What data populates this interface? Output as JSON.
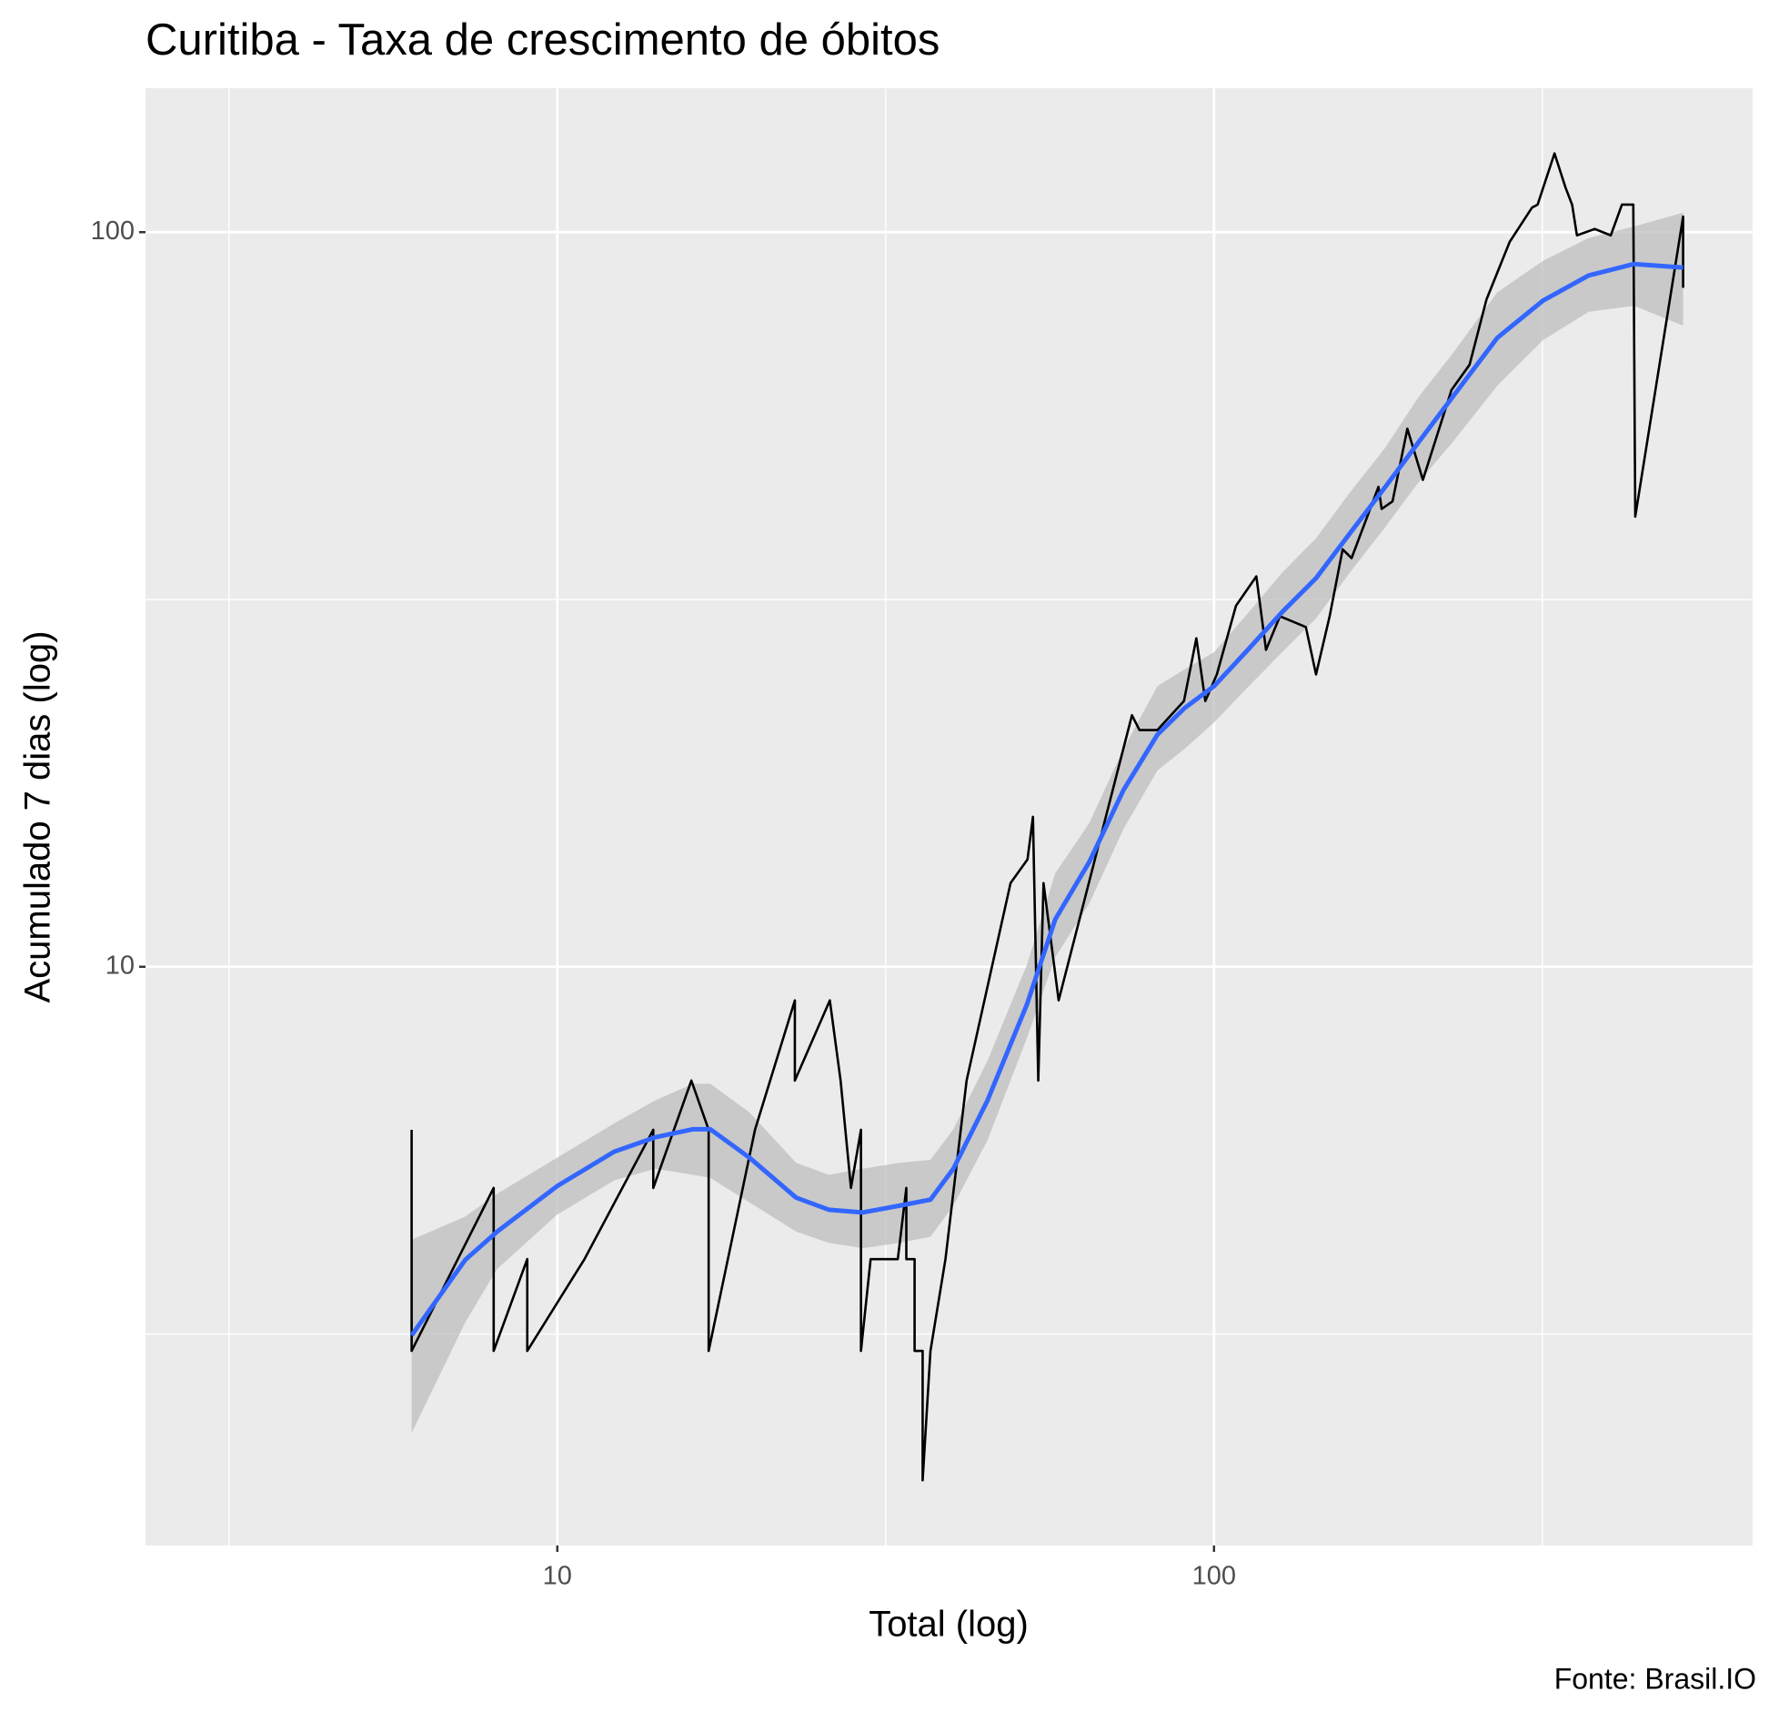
{
  "chart_data": {
    "type": "line",
    "title": "Curitiba - Taxa de crescimento de óbitos",
    "xlabel": "Total (log)",
    "ylabel": "Acumulado 7 dias (log)",
    "caption": "Fonte: Brasil.IO",
    "log_x": true,
    "log_y": true,
    "xlim": [
      2.36,
      661
    ],
    "ylim": [
      1.63,
      157
    ],
    "xticks": [
      10,
      100
    ],
    "yticks": [
      10,
      100
    ],
    "xminor": [
      3.162,
      31.62,
      316.2
    ],
    "yminor": [
      3.162,
      31.62
    ],
    "grid": true,
    "series": [
      {
        "color": "#000000",
        "x": [
          6,
          6,
          8,
          8,
          9,
          9,
          11,
          14,
          14,
          16,
          17,
          17,
          20,
          23,
          23,
          26,
          27,
          28,
          29,
          29,
          30,
          33,
          34,
          34,
          35,
          35,
          36,
          36,
          37,
          39,
          42,
          49,
          52,
          53,
          54,
          55,
          58,
          75,
          77,
          82,
          90,
          94,
          97,
          101,
          108,
          116,
          120,
          126,
          138,
          143,
          150,
          157,
          162,
          178,
          180,
          187,
          197,
          208,
          230,
          245,
          260,
          282,
          305,
          311,
          330,
          343,
          351,
          357,
          380,
          402,
          418,
          435,
          438,
          518,
          518
        ],
        "values": [
          6,
          3,
          5,
          3,
          4,
          3,
          4,
          6,
          5,
          7,
          6,
          3,
          6,
          9,
          7,
          9,
          7,
          5,
          6,
          3,
          4,
          4,
          5,
          4,
          4,
          3,
          3,
          2,
          3,
          4,
          7,
          13,
          14,
          16,
          7,
          13,
          9,
          22,
          21,
          21,
          23,
          28,
          23,
          25,
          31,
          34,
          27,
          30,
          29,
          25,
          30,
          37,
          36,
          45,
          42,
          43,
          54,
          46,
          61,
          66,
          81,
          97,
          108,
          109,
          128,
          115,
          109,
          99,
          101,
          99,
          109,
          109,
          41,
          105,
          84
        ]
      }
    ],
    "smooth": {
      "color": "#3366FF",
      "band_color": "#BEBEBE",
      "x": [
        6,
        7.24,
        8.1,
        10,
        12.2,
        14.1,
        16.1,
        17.1,
        19.6,
        23.1,
        25.9,
        29.2,
        33.2,
        37,
        40.1,
        45.2,
        51.9,
        57.3,
        64.6,
        72.8,
        82,
        90.2,
        100,
        113,
        127,
        143,
        161,
        182,
        205,
        231,
        270,
        317,
        372,
        436,
        518
      ],
      "values": [
        3.15,
        3.99,
        4.36,
        5.03,
        5.6,
        5.86,
        6.01,
        6.01,
        5.5,
        4.85,
        4.67,
        4.63,
        4.73,
        4.82,
        5.31,
        6.58,
        8.89,
        11.6,
        13.9,
        17.4,
        20.7,
        22.5,
        24.1,
        27.1,
        30.4,
        33.8,
        38.9,
        44.9,
        51.8,
        59.7,
        71.8,
        80.7,
        87.3,
        90.5,
        89.5
      ],
      "lower": [
        2.32,
        3.28,
        3.88,
        4.6,
        5.12,
        5.31,
        5.21,
        5.16,
        4.78,
        4.36,
        4.21,
        4.14,
        4.21,
        4.29,
        4.73,
        5.81,
        8,
        10.3,
        12.2,
        15.4,
        18.5,
        19.8,
        21.5,
        24.1,
        26.8,
        29.8,
        34.4,
        39.6,
        45.7,
        51.8,
        61.8,
        71.3,
        77.9,
        79.4,
        74.6
      ],
      "upper": [
        4.25,
        4.57,
        4.91,
        5.5,
        6.12,
        6.58,
        6.93,
        6.93,
        6.34,
        5.41,
        5.21,
        5.31,
        5.41,
        5.46,
        6.01,
        7.45,
        10.07,
        13.4,
        15.7,
        19.8,
        24.1,
        25.4,
        26.8,
        30.4,
        34.4,
        38.3,
        44.2,
        50.8,
        59.7,
        68.4,
        82.8,
        91.4,
        98.2,
        101.8,
        106.3
      ]
    }
  }
}
